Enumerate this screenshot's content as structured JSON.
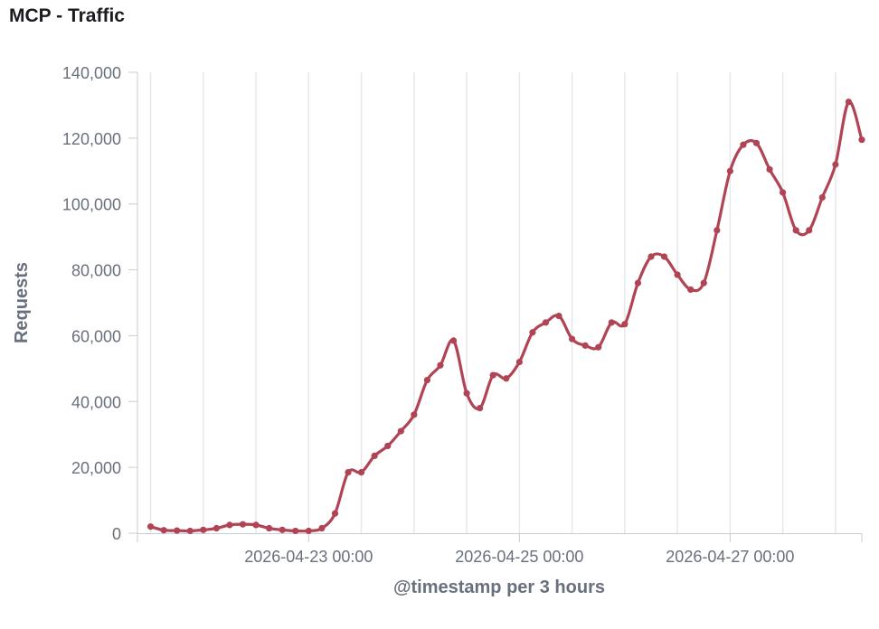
{
  "panel": {
    "title": "MCP - Traffic"
  },
  "colors": {
    "series": "#b04455",
    "grid": "#e6e8ec",
    "axis": "#c8ccd4",
    "tick_text": "#69707d",
    "title_text": "#1a1c21"
  },
  "chart_data": {
    "type": "line",
    "title": "MCP - Traffic",
    "xlabel": "@timestamp per 3 hours",
    "ylabel": "Requests",
    "x_interval": "3 hours",
    "x_start": "2026-04-21 12:00",
    "xlim": [
      "2026-04-21 09:00",
      "2026-04-28 06:00"
    ],
    "ylim": [
      0,
      140000
    ],
    "y_ticks": [
      0,
      20000,
      40000,
      60000,
      80000,
      100000,
      120000,
      140000
    ],
    "y_tick_labels": [
      "0",
      "20,000",
      "40,000",
      "60,000",
      "80,000",
      "100,000",
      "120,000",
      "140,000"
    ],
    "x_tick_labels": [
      {
        "label": "2026-04-23 00:00",
        "value": "2026-04-23 00:00"
      },
      {
        "label": "2026-04-25 00:00",
        "value": "2026-04-25 00:00"
      },
      {
        "label": "2026-04-27 00:00",
        "value": "2026-04-27 00:00"
      }
    ],
    "grid": true,
    "legend": "none",
    "series": [
      {
        "values": [
          2000,
          900,
          800,
          700,
          1000,
          1500,
          2500,
          2700,
          2500,
          1500,
          1000,
          700,
          700,
          1500,
          6000,
          18500,
          18500,
          23500,
          26500,
          31000,
          36000,
          46500,
          51000,
          58500,
          42500,
          38000,
          48000,
          47000,
          52000,
          61000,
          64000,
          66000,
          59000,
          57000,
          56500,
          64000,
          63500,
          76000,
          84000,
          84000,
          78500,
          74000,
          76000,
          92000,
          110000,
          118000,
          118500,
          110500,
          103500,
          92000,
          92000,
          102000,
          112000,
          131000,
          119500
        ]
      }
    ]
  }
}
